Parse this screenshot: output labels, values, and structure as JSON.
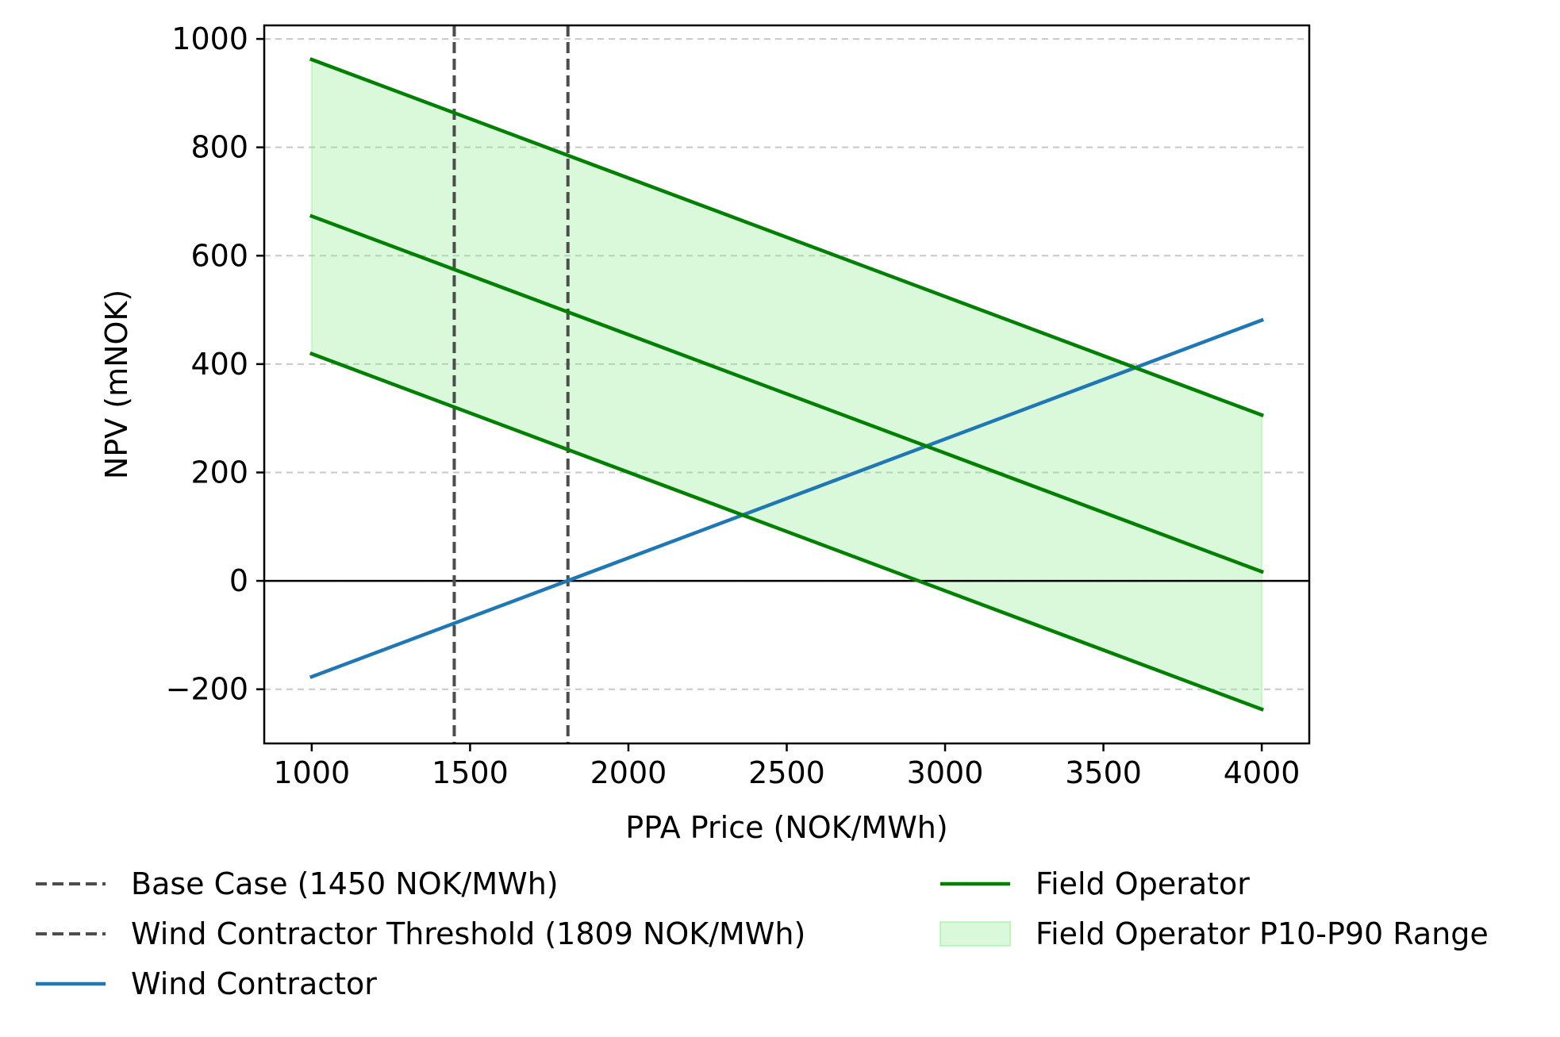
{
  "chart_data": {
    "type": "line",
    "title": "",
    "xlabel": "PPA Price (NOK/MWh)",
    "ylabel": "NPV (mNOK)",
    "xlim": [
      850,
      4150
    ],
    "ylim": [
      -300,
      1025
    ],
    "xticks": [
      1000,
      1500,
      2000,
      2500,
      3000,
      3500,
      4000
    ],
    "yticks": [
      -200,
      0,
      200,
      400,
      600,
      800,
      1000
    ],
    "ytick_labels": [
      "−200",
      "0",
      "200",
      "400",
      "600",
      "800",
      "1000"
    ],
    "grid": {
      "y": true,
      "x": false,
      "style": "dashed"
    },
    "zero_line": true,
    "vlines": [
      {
        "x": 1450,
        "label": "Base Case (1450 NOK/MWh)",
        "color": "#4d4d4d",
        "style": "dashed"
      },
      {
        "x": 1809,
        "label": "Wind Contractor Threshold (1809 NOK/MWh)",
        "color": "#4d4d4d",
        "style": "dashed"
      }
    ],
    "series": [
      {
        "name": "Wind Contractor",
        "color": "#1f77b4",
        "x": [
          1000,
          4000
        ],
        "y": [
          -177,
          481
        ]
      },
      {
        "name": "Field Operator",
        "color": "#008000",
        "x": [
          1000,
          4000
        ],
        "y": [
          673,
          17
        ]
      },
      {
        "name": "",
        "color": "#008000",
        "x": [
          1000,
          4000
        ],
        "y": [
          962,
          306
        ]
      },
      {
        "name": "",
        "color": "#008000",
        "x": [
          1000,
          4000
        ],
        "y": [
          419,
          -237
        ]
      }
    ],
    "band": {
      "name": "Field Operator P10-P90 Range",
      "color": "#90ee90",
      "opacity": 0.33,
      "x": [
        1000,
        4000
      ],
      "upper": [
        962,
        306
      ],
      "lower": [
        419,
        -237
      ]
    },
    "legend": {
      "placement": "below",
      "columns": [
        [
          {
            "label": "Base Case (1450 NOK/MWh)",
            "kind": "dashed",
            "color": "#4d4d4d"
          },
          {
            "label": "Wind Contractor Threshold (1809 NOK/MWh)",
            "kind": "dashed",
            "color": "#4d4d4d"
          },
          {
            "label": "Wind Contractor",
            "kind": "line",
            "color": "#1f77b4"
          }
        ],
        [
          {
            "label": "Field Operator",
            "kind": "line",
            "color": "#008000"
          },
          {
            "label": "Field Operator P10-P90 Range",
            "kind": "patch",
            "color": "#90ee90"
          }
        ]
      ]
    }
  }
}
